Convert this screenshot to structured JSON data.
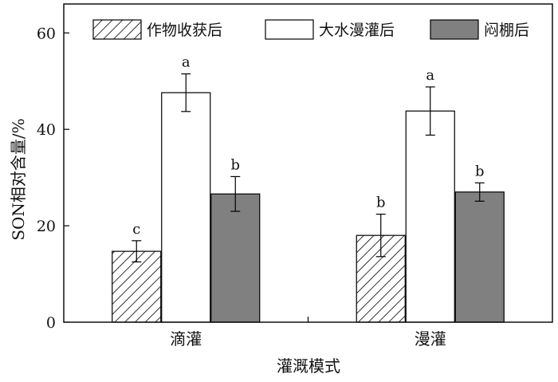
{
  "chart_data": {
    "type": "bar",
    "title": "",
    "xlabel": "灌溉模式",
    "ylabel": "SON相对含量/%",
    "ylim": [
      0,
      66
    ],
    "yticks": [
      0,
      20,
      40,
      60
    ],
    "grid": false,
    "legend_position": "top",
    "categories": [
      "滴灌",
      "漫灌"
    ],
    "series": [
      {
        "name": "作物收获后",
        "fill": "hatch",
        "values": [
          14.7,
          18.0
        ],
        "errors": [
          2.2,
          4.4
        ],
        "labels": [
          "c",
          "b"
        ]
      },
      {
        "name": "大水漫灌后",
        "fill": "#ffffff",
        "values": [
          47.6,
          43.8
        ],
        "errors": [
          3.9,
          5.0
        ],
        "labels": [
          "a",
          "a"
        ]
      },
      {
        "name": "闷棚后",
        "fill": "#808080",
        "values": [
          26.6,
          27.0
        ],
        "errors": [
          3.6,
          1.9
        ],
        "labels": [
          "b",
          "b"
        ]
      }
    ]
  }
}
